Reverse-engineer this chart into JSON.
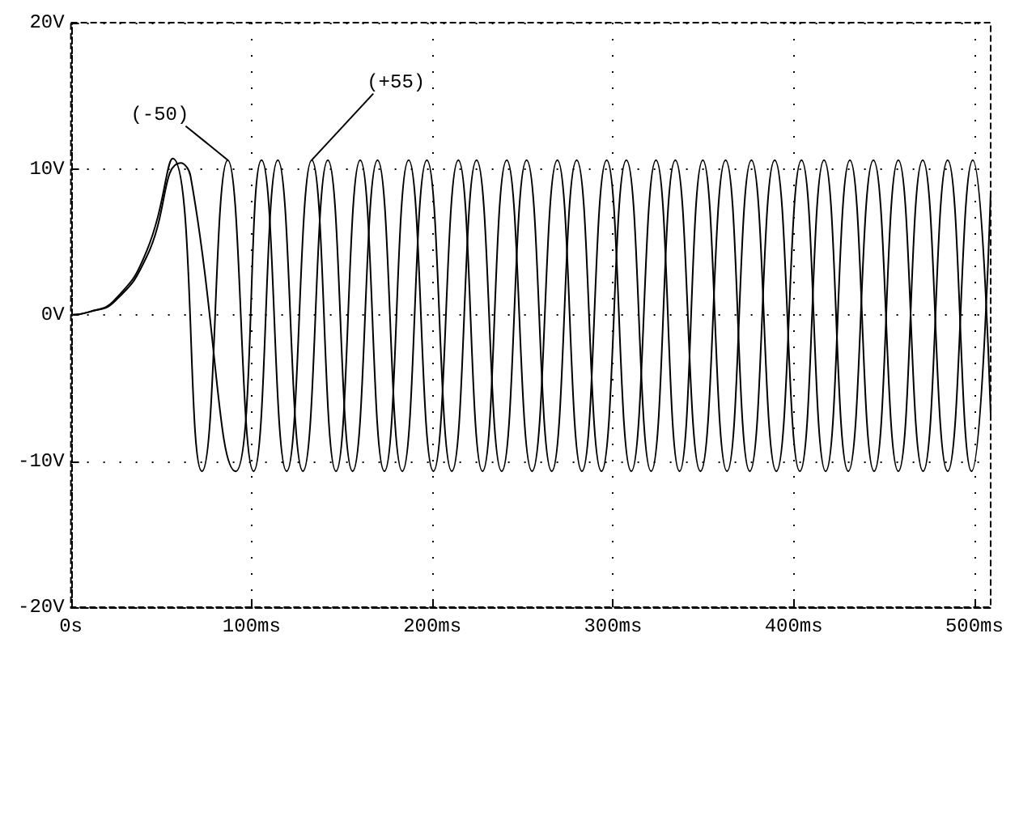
{
  "chart_data": {
    "type": "line",
    "xlim": [
      0,
      509
    ],
    "ylim": [
      -20,
      20
    ],
    "xticks": [
      {
        "value": 0,
        "label": "0s"
      },
      {
        "value": 100,
        "label": "100ms"
      },
      {
        "value": 200,
        "label": "200ms"
      },
      {
        "value": 300,
        "label": "300ms"
      },
      {
        "value": 400,
        "label": "400ms"
      },
      {
        "value": 500,
        "label": "500ms"
      }
    ],
    "yticks": [
      {
        "value": -20,
        "label": "-20V"
      },
      {
        "value": -10,
        "label": "-10V"
      },
      {
        "value": 0,
        "label": "0V"
      },
      {
        "value": 10,
        "label": "10V"
      },
      {
        "value": 20,
        "label": "20V"
      }
    ],
    "grid": true,
    "marker": "none",
    "line_style": "solid",
    "series": [
      {
        "color": "#000000",
        "x": [
          0,
          10,
          24,
          42,
          56.4,
          72.5,
          86.8,
          101.1,
          114.5,
          128.4,
          142.2,
          155.9,
          169.7,
          183.4,
          197,
          210.8,
          224.5,
          238.4,
          252.2,
          266.1,
          279.9,
          293.6,
          307.4,
          321.1,
          334.5,
          348.4,
          362.3,
          375.7,
          389.5,
          403.4,
          416.8,
          430.2,
          444.1,
          457.9,
          471.4,
          485.2,
          499.1,
          509
        ],
        "values": [
          0,
          0.2,
          1,
          4.4,
          10.7,
          -10.7,
          10.6,
          -10.7,
          10.6,
          -10.7,
          10.6,
          -10.7,
          10.6,
          -10.7,
          10.6,
          -10.7,
          10.6,
          -10.7,
          10.6,
          -10.7,
          10.6,
          -10.7,
          10.6,
          -10.7,
          10.6,
          -10.7,
          10.6,
          -10.7,
          10.6,
          -10.7,
          10.6,
          -10.7,
          10.6,
          -10.7,
          10.6,
          -10.7,
          10.6,
          -6.8
        ]
      },
      {
        "color": "#000000",
        "x": [
          0,
          10,
          24,
          42,
          60.8,
          66.2,
          91.2,
          105.5,
          119.4,
          133.3,
          146.7,
          160.1,
          173.5,
          186.9,
          200.6,
          214.4,
          227.8,
          241.2,
          255.2,
          269.2,
          282.8,
          296.5,
          310.1,
          323.8,
          336.8,
          349.7,
          363.1,
          376.6,
          390.4,
          404.3,
          417.7,
          431.1,
          444.5,
          457.9,
          471.6,
          485.2,
          498.4,
          509
        ],
        "values": [
          0,
          0.2,
          0.9,
          4.0,
          10.4,
          9.5,
          -10.7,
          10.6,
          -10.7,
          10.6,
          -10.7,
          10.6,
          -10.7,
          10.6,
          -10.7,
          10.6,
          -10.7,
          10.6,
          -10.7,
          10.6,
          -10.7,
          10.6,
          -10.7,
          10.6,
          -10.7,
          10.6,
          -10.7,
          10.6,
          -10.7,
          10.6,
          -10.7,
          10.6,
          -10.7,
          10.6,
          -10.7,
          10.6,
          -10.7,
          8.4
        ]
      }
    ],
    "annotations": [
      {
        "text": "(-50)",
        "x": 86.8,
        "y": 10.6
      },
      {
        "text": "(+55)",
        "x": 133.3,
        "y": 10.6
      }
    ]
  }
}
